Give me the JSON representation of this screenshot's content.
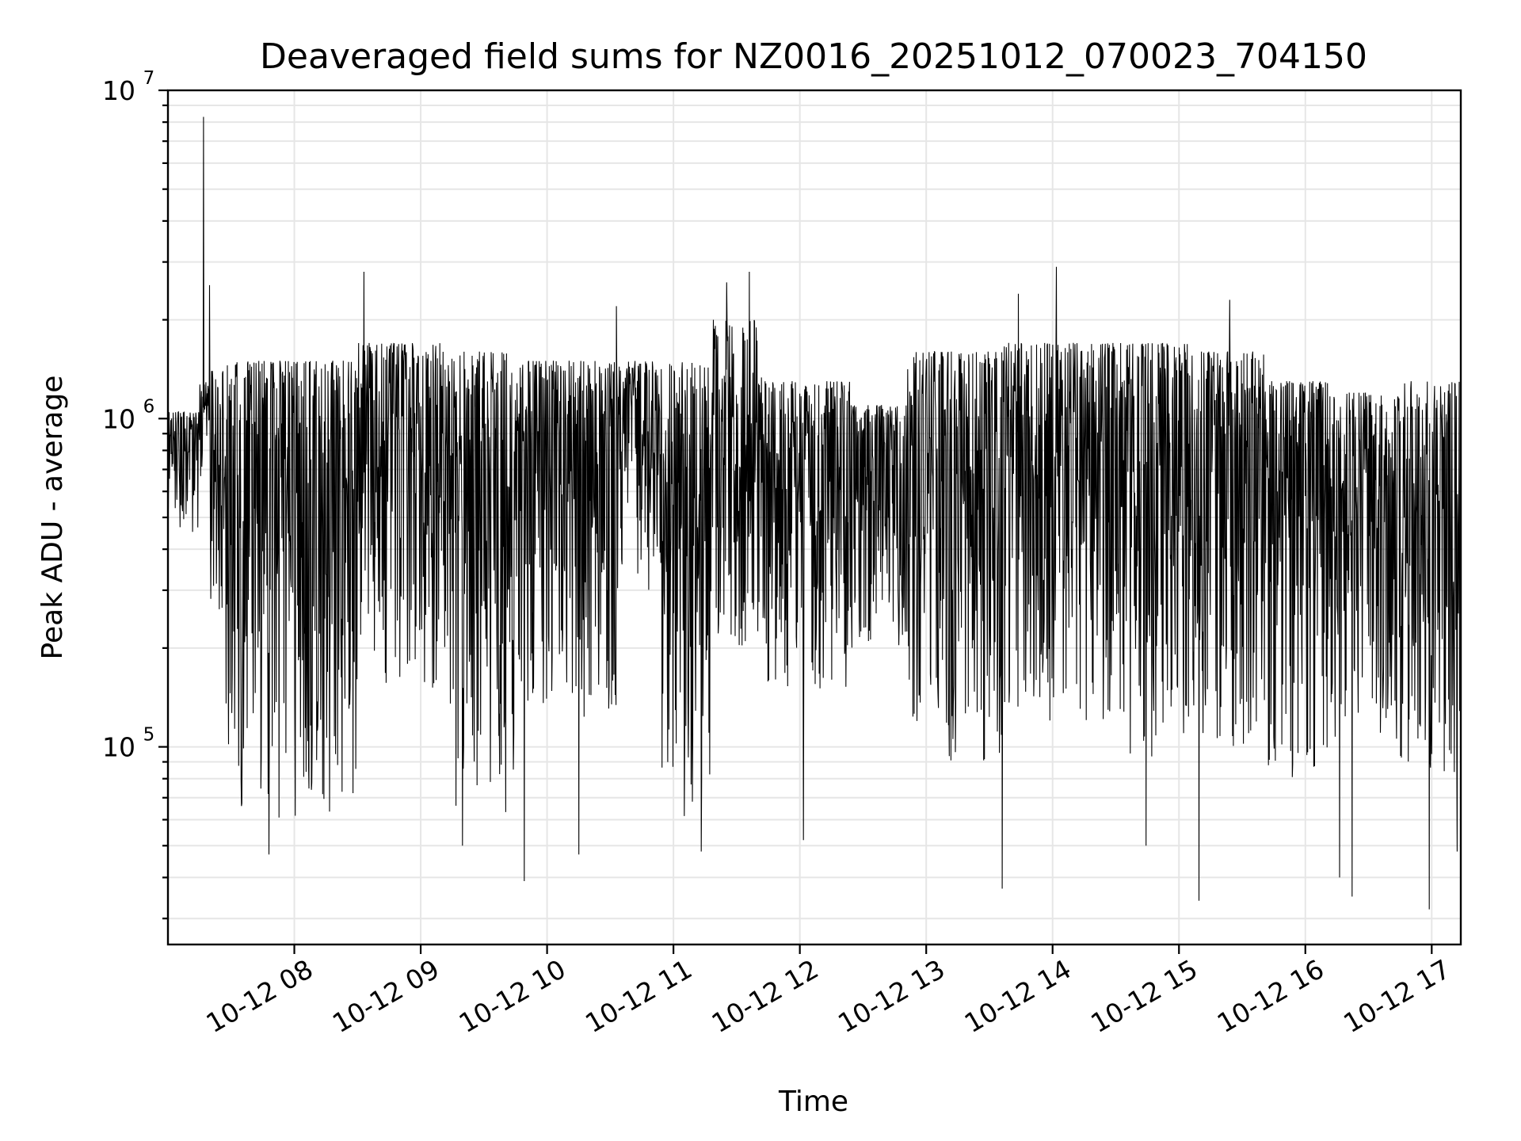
{
  "chart_data": {
    "type": "line",
    "title": "Deaveraged field sums for NZ0016_20251012_070023_704150",
    "xlabel": "Time",
    "ylabel": "Peak ADU - average",
    "yscale": "log",
    "ylim": [
      25000,
      10000000
    ],
    "xlim_hours": [
      7.0,
      17.23
    ],
    "grid": true,
    "x_ticks": [
      {
        "hour": 8,
        "label": "10-12 08"
      },
      {
        "hour": 9,
        "label": "10-12 09"
      },
      {
        "hour": 10,
        "label": "10-12 10"
      },
      {
        "hour": 11,
        "label": "10-12 11"
      },
      {
        "hour": 12,
        "label": "10-12 12"
      },
      {
        "hour": 13,
        "label": "10-12 13"
      },
      {
        "hour": 14,
        "label": "10-12 14"
      },
      {
        "hour": 15,
        "label": "10-12 15"
      },
      {
        "hour": 16,
        "label": "10-12 16"
      },
      {
        "hour": 17,
        "label": "10-12 17"
      }
    ],
    "y_ticks": [
      {
        "value": 100000,
        "base": "10",
        "exp": "5"
      },
      {
        "value": 1000000,
        "base": "10",
        "exp": "6"
      },
      {
        "value": 10000000,
        "base": "10",
        "exp": "7"
      }
    ],
    "series": [
      {
        "name": "field sums",
        "color": "#000000",
        "segments": [
          {
            "t0": 7.0,
            "t1": 7.25,
            "low": 450000,
            "high": 1050000
          },
          {
            "t0": 7.25,
            "t1": 7.33,
            "low": 650000,
            "high": 1300000
          },
          {
            "t0": 7.33,
            "t1": 7.45,
            "low": 250000,
            "high": 1400000
          },
          {
            "t0": 7.45,
            "t1": 8.5,
            "low": 60000,
            "high": 1500000
          },
          {
            "t0": 8.5,
            "t1": 9.2,
            "low": 150000,
            "high": 1700000
          },
          {
            "t0": 9.2,
            "t1": 9.75,
            "low": 60000,
            "high": 1600000
          },
          {
            "t0": 9.75,
            "t1": 10.55,
            "low": 120000,
            "high": 1500000
          },
          {
            "t0": 10.55,
            "t1": 10.9,
            "low": 300000,
            "high": 1500000
          },
          {
            "t0": 10.9,
            "t1": 11.3,
            "low": 60000,
            "high": 1500000
          },
          {
            "t0": 11.3,
            "t1": 11.7,
            "low": 200000,
            "high": 2000000
          },
          {
            "t0": 11.7,
            "t1": 12.4,
            "low": 150000,
            "high": 1300000
          },
          {
            "t0": 12.4,
            "t1": 12.85,
            "low": 200000,
            "high": 1100000
          },
          {
            "t0": 12.85,
            "t1": 13.6,
            "low": 90000,
            "high": 1600000
          },
          {
            "t0": 13.6,
            "t1": 14.5,
            "low": 120000,
            "high": 1700000
          },
          {
            "t0": 14.5,
            "t1": 15.1,
            "low": 90000,
            "high": 1700000
          },
          {
            "t0": 15.1,
            "t1": 15.7,
            "low": 100000,
            "high": 1600000
          },
          {
            "t0": 15.7,
            "t1": 16.2,
            "low": 80000,
            "high": 1300000
          },
          {
            "t0": 16.2,
            "t1": 16.75,
            "low": 100000,
            "high": 1200000
          },
          {
            "t0": 16.75,
            "t1": 17.23,
            "low": 80000,
            "high": 1300000
          }
        ],
        "spikes": [
          {
            "hour": 7.28,
            "value": 8300000
          },
          {
            "hour": 7.33,
            "value": 2550000
          },
          {
            "hour": 7.8,
            "value": 47000
          },
          {
            "hour": 8.55,
            "value": 2800000
          },
          {
            "hour": 9.33,
            "value": 50000
          },
          {
            "hour": 9.82,
            "value": 39000
          },
          {
            "hour": 10.25,
            "value": 47000
          },
          {
            "hour": 10.55,
            "value": 2200000
          },
          {
            "hour": 11.22,
            "value": 48000
          },
          {
            "hour": 11.42,
            "value": 2600000
          },
          {
            "hour": 11.6,
            "value": 2800000
          },
          {
            "hour": 12.03,
            "value": 52000
          },
          {
            "hour": 13.6,
            "value": 37000
          },
          {
            "hour": 13.73,
            "value": 2400000
          },
          {
            "hour": 14.03,
            "value": 2900000
          },
          {
            "hour": 14.74,
            "value": 50000
          },
          {
            "hour": 15.16,
            "value": 34000
          },
          {
            "hour": 15.4,
            "value": 2300000
          },
          {
            "hour": 16.27,
            "value": 40000
          },
          {
            "hour": 16.37,
            "value": 35000
          },
          {
            "hour": 16.98,
            "value": 32000
          },
          {
            "hour": 17.2,
            "value": 48000
          }
        ]
      }
    ]
  }
}
